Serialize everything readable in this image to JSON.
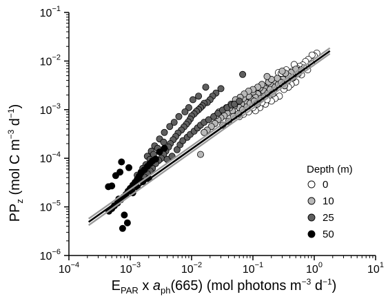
{
  "chart_data": {
    "type": "scatter",
    "title": "",
    "xlabel": {
      "prefix": "E",
      "prefix_sub": "PAR",
      "middle": " x ",
      "italic": "a",
      "italic_sub": "ph",
      "rest": "(665) (mol photons m",
      "sup1": "−3",
      "rest2": " d",
      "sup2": "−1",
      "end": ")"
    },
    "ylabel": {
      "prefix": "PP",
      "prefix_sub": "z",
      "rest": " (mol C m",
      "sup1": "−3",
      "rest2": " d",
      "sup2": "−1",
      "end": ")"
    },
    "x_scale": "log",
    "y_scale": "log",
    "xlim": [
      0.0001,
      10
    ],
    "ylim": [
      1e-06,
      0.1
    ],
    "x_ticks": [
      {
        "base": "10",
        "exp": "−4",
        "value": 0.0001
      },
      {
        "base": "10",
        "exp": "−3",
        "value": 0.001
      },
      {
        "base": "10",
        "exp": "−2",
        "value": 0.01
      },
      {
        "base": "10",
        "exp": "−1",
        "value": 0.1
      },
      {
        "base": "10",
        "exp": "0",
        "value": 1
      },
      {
        "base": "10",
        "exp": "1",
        "value": 10
      }
    ],
    "y_ticks": [
      {
        "base": "10",
        "exp": "−6",
        "value": 1e-06
      },
      {
        "base": "10",
        "exp": "−5",
        "value": 1e-05
      },
      {
        "base": "10",
        "exp": "−4",
        "value": 0.0001
      },
      {
        "base": "10",
        "exp": "−3",
        "value": 0.001
      },
      {
        "base": "10",
        "exp": "−2",
        "value": 0.01
      },
      {
        "base": "10",
        "exp": "−1",
        "value": 0.1
      }
    ],
    "grid": false,
    "legend": {
      "title": "Depth (m)",
      "placement": "bottom-right",
      "entries": [
        {
          "label": "0",
          "fill": "#ffffff"
        },
        {
          "label": "10",
          "fill": "#b8b8b8"
        },
        {
          "label": "25",
          "fill": "#5f5f5f"
        },
        {
          "label": "50",
          "fill": "#000000"
        }
      ]
    },
    "fit_lines": [
      {
        "color": "#9a9a9a",
        "x": [
          0.00021,
          1.8
        ],
        "y": [
          5.7e-06,
          0.0185
        ]
      },
      {
        "color": "#9a9a9a",
        "x": [
          0.00021,
          1.8
        ],
        "y": [
          4.2e-06,
          0.0142
        ]
      },
      {
        "color": "#000000",
        "x": [
          0.00021,
          1.8
        ],
        "y": [
          4.9e-06,
          0.0161
        ]
      }
    ],
    "series": [
      {
        "name": "0",
        "fill": "#ffffff",
        "points": [
          [
            1.1,
            0.0145
          ],
          [
            1.0,
            0.0128
          ],
          [
            0.92,
            0.0133
          ],
          [
            0.8,
            0.0108
          ],
          [
            0.72,
            0.0098
          ],
          [
            0.65,
            0.0083
          ],
          [
            0.58,
            0.0078
          ],
          [
            0.52,
            0.0071
          ],
          [
            0.47,
            0.0085
          ],
          [
            0.44,
            0.0062
          ],
          [
            0.4,
            0.0056
          ],
          [
            0.36,
            0.005
          ],
          [
            0.33,
            0.0052
          ],
          [
            0.3,
            0.0047
          ],
          [
            0.28,
            0.0042
          ],
          [
            0.26,
            0.0058
          ],
          [
            0.24,
            0.0036
          ],
          [
            0.22,
            0.0032
          ],
          [
            0.2,
            0.0038
          ],
          [
            0.18,
            0.0028
          ],
          [
            0.17,
            0.0024
          ],
          [
            0.15,
            0.003
          ],
          [
            0.14,
            0.0022
          ],
          [
            0.13,
            0.0019
          ],
          [
            0.12,
            0.0016
          ],
          [
            0.11,
            0.0021
          ],
          [
            0.1,
            0.0014
          ],
          [
            0.095,
            0.0017
          ],
          [
            0.088,
            0.0012
          ],
          [
            0.5,
            0.0037
          ],
          [
            0.62,
            0.0052
          ],
          [
            0.42,
            0.0033
          ],
          [
            0.38,
            0.0029
          ],
          [
            0.32,
            0.0026
          ],
          [
            0.27,
            0.0019
          ],
          [
            0.23,
            0.0017
          ],
          [
            0.2,
            0.0015
          ],
          [
            0.16,
            0.0013
          ],
          [
            0.13,
            0.0011
          ],
          [
            0.11,
            0.00095
          ],
          [
            0.085,
            0.0009
          ],
          [
            0.78,
            0.0066
          ],
          [
            0.9,
            0.0089
          ],
          [
            0.35,
            0.0066
          ],
          [
            0.29,
            0.0056
          ],
          [
            0.25,
            0.0029
          ],
          [
            0.19,
            0.0022
          ],
          [
            0.15,
            0.0018
          ],
          [
            0.12,
            0.0025
          ],
          [
            0.1,
            0.0011
          ],
          [
            0.07,
            0.0008
          ],
          [
            0.06,
            0.00072
          ],
          [
            0.055,
            0.001
          ],
          [
            0.45,
            0.0045
          ],
          [
            0.55,
            0.0064
          ],
          [
            0.68,
            0.0072
          ],
          [
            0.3,
            0.0034
          ],
          [
            0.21,
            0.0024
          ],
          [
            0.17,
            0.0016
          ],
          [
            0.14,
            0.0014
          ],
          [
            0.09,
            0.0019
          ],
          [
            0.075,
            0.0015
          ],
          [
            0.065,
            0.0011
          ]
        ]
      },
      {
        "name": "10",
        "fill": "#b8b8b8",
        "points": [
          [
            0.5,
            0.0068
          ],
          [
            0.42,
            0.0058
          ],
          [
            0.38,
            0.0049
          ],
          [
            0.34,
            0.0056
          ],
          [
            0.31,
            0.0042
          ],
          [
            0.27,
            0.0038
          ],
          [
            0.25,
            0.0044
          ],
          [
            0.22,
            0.0035
          ],
          [
            0.2,
            0.0031
          ],
          [
            0.18,
            0.0037
          ],
          [
            0.16,
            0.0027
          ],
          [
            0.15,
            0.0024
          ],
          [
            0.13,
            0.0028
          ],
          [
            0.12,
            0.0021
          ],
          [
            0.11,
            0.0018
          ],
          [
            0.1,
            0.0023
          ],
          [
            0.095,
            0.0016
          ],
          [
            0.085,
            0.0019
          ],
          [
            0.078,
            0.0014
          ],
          [
            0.07,
            0.0017
          ],
          [
            0.065,
            0.0013
          ],
          [
            0.06,
            0.0011
          ],
          [
            0.055,
            0.0015
          ],
          [
            0.05,
            0.0012
          ],
          [
            0.046,
            0.00095
          ],
          [
            0.042,
            0.0011
          ],
          [
            0.038,
            0.00085
          ],
          [
            0.034,
            0.00075
          ],
          [
            0.03,
            0.00068
          ],
          [
            0.027,
            0.00062
          ],
          [
            0.024,
            0.00052
          ],
          [
            0.021,
            0.00045
          ],
          [
            0.018,
            0.00038
          ],
          [
            0.016,
            0.00034
          ],
          [
            0.014,
            0.00012
          ],
          [
            0.032,
            0.00048
          ],
          [
            0.04,
            0.00058
          ],
          [
            0.048,
            0.00072
          ],
          [
            0.058,
            0.00082
          ],
          [
            0.068,
            0.001
          ],
          [
            0.08,
            0.00115
          ],
          [
            0.09,
            0.00135
          ],
          [
            0.105,
            0.0015
          ],
          [
            0.118,
            0.0013
          ],
          [
            0.135,
            0.0017
          ],
          [
            0.155,
            0.0019
          ],
          [
            0.175,
            0.0022
          ],
          [
            0.19,
            0.0026
          ],
          [
            0.21,
            0.0021
          ],
          [
            0.23,
            0.0029
          ],
          [
            0.26,
            0.0033
          ],
          [
            0.29,
            0.0036
          ],
          [
            0.33,
            0.0031
          ],
          [
            0.37,
            0.0039
          ],
          [
            0.44,
            0.0045
          ],
          [
            0.55,
            0.0055
          ],
          [
            0.62,
            0.0066
          ],
          [
            0.14,
            0.0033
          ],
          [
            0.12,
            0.0029
          ],
          [
            0.1,
            0.0026
          ],
          [
            0.085,
            0.0024
          ],
          [
            0.072,
            0.0021
          ],
          [
            0.062,
            0.0018
          ],
          [
            0.052,
            0.0016
          ],
          [
            0.044,
            0.0013
          ],
          [
            0.037,
            0.0011
          ],
          [
            0.028,
            0.0009
          ],
          [
            0.025,
            0.00075
          ],
          [
            0.2,
            0.0042
          ],
          [
            0.17,
            0.0048
          ],
          [
            0.3,
            0.0062
          ]
        ]
      },
      {
        "name": "25",
        "fill": "#5f5f5f",
        "points": [
          [
            0.068,
            0.0053
          ],
          [
            0.03,
            0.0027
          ],
          [
            0.025,
            0.0022
          ],
          [
            0.022,
            0.0019
          ],
          [
            0.02,
            0.0016
          ],
          [
            0.018,
            0.0014
          ],
          [
            0.016,
            0.00135
          ],
          [
            0.015,
            0.0012
          ],
          [
            0.014,
            0.0011
          ],
          [
            0.013,
            0.001
          ],
          [
            0.012,
            0.00092
          ],
          [
            0.011,
            0.00082
          ],
          [
            0.01,
            0.00074
          ],
          [
            0.0095,
            0.00064
          ],
          [
            0.0088,
            0.00056
          ],
          [
            0.0082,
            0.0005
          ],
          [
            0.0075,
            0.00044
          ],
          [
            0.0068,
            0.00038
          ],
          [
            0.006,
            0.00033
          ],
          [
            0.0055,
            0.00028
          ],
          [
            0.005,
            0.00024
          ],
          [
            0.0045,
            0.0002
          ],
          [
            0.0042,
            0.00017
          ],
          [
            0.0038,
            0.00014
          ],
          [
            0.0035,
            0.00012
          ],
          [
            0.0032,
            0.0001
          ],
          [
            0.0029,
            9e-05
          ],
          [
            0.0026,
            7.8e-05
          ],
          [
            0.0023,
            6.2e-05
          ],
          [
            0.0021,
            5.5e-05
          ],
          [
            0.0019,
            4.8e-05
          ],
          [
            0.0017,
            4.1e-05
          ],
          [
            0.004,
            9.5e-05
          ],
          [
            0.0048,
            0.00011
          ],
          [
            0.0058,
            0.00015
          ],
          [
            0.0065,
            0.00019
          ],
          [
            0.0072,
            0.00023
          ],
          [
            0.0085,
            0.00027
          ],
          [
            0.0095,
            0.00031
          ],
          [
            0.011,
            0.00036
          ],
          [
            0.0125,
            0.00042
          ],
          [
            0.014,
            0.00048
          ],
          [
            0.016,
            0.00055
          ],
          [
            0.019,
            0.00062
          ],
          [
            0.023,
            0.00072
          ],
          [
            0.027,
            0.00085
          ],
          [
            0.032,
            0.00098
          ],
          [
            0.038,
            0.0011
          ],
          [
            0.045,
            0.00125
          ],
          [
            0.05,
            0.0013
          ],
          [
            0.06,
            0.0015
          ],
          [
            0.017,
            0.0029
          ],
          [
            0.013,
            0.0019
          ],
          [
            0.0105,
            0.0016
          ],
          [
            0.009,
            0.0011
          ],
          [
            0.0078,
            0.0009
          ],
          [
            0.0062,
            0.00072
          ],
          [
            0.0052,
            0.00055
          ],
          [
            0.0044,
            0.00045
          ],
          [
            0.0036,
            0.00034
          ],
          [
            0.003,
            0.00025
          ],
          [
            0.0025,
            0.00018
          ],
          [
            0.0022,
            0.00014
          ],
          [
            0.0019,
            0.00011
          ],
          [
            0.0035,
            0.000215
          ],
          [
            0.0028,
            0.00016
          ],
          [
            0.0024,
            0.00012
          ],
          [
            0.0021,
            9.5e-05
          ],
          [
            0.0018,
            7.4e-05
          ],
          [
            0.0016,
            6.2e-05
          ],
          [
            0.0015,
            5.2e-05
          ],
          [
            0.0013,
            4.5e-05
          ]
        ]
      },
      {
        "name": "50",
        "fill": "#000000",
        "points": [
          [
            0.0036,
            0.00016
          ],
          [
            0.003,
            0.000135
          ],
          [
            0.0026,
            9.6e-05
          ],
          [
            0.0023,
            8.8e-05
          ],
          [
            0.0021,
            7.8e-05
          ],
          [
            0.0019,
            6.8e-05
          ],
          [
            0.0017,
            5.8e-05
          ],
          [
            0.0015,
            5e-05
          ],
          [
            0.0014,
            4.3e-05
          ],
          [
            0.0013,
            3.7e-05
          ],
          [
            0.0012,
            3.2e-05
          ],
          [
            0.0011,
            2.8e-05
          ],
          [
            0.001,
            2.4e-05
          ],
          [
            0.00092,
            2.1e-05
          ],
          [
            0.00085,
            1.8e-05
          ],
          [
            0.00078,
            1.6e-05
          ],
          [
            0.0007,
            1.4e-05
          ],
          [
            0.00062,
            1.2e-05
          ],
          [
            0.00055,
            1.05e-05
          ],
          [
            0.0005,
            9.2e-06
          ],
          [
            0.00045,
            8.2e-06
          ],
          [
            0.00072,
            8.4e-05
          ],
          [
            0.00095,
            6.4e-05
          ],
          [
            0.00068,
            5.2e-05
          ],
          [
            0.00058,
            4.4e-05
          ],
          [
            0.0005,
            2.7e-05
          ],
          [
            0.00044,
            2.6e-05
          ],
          [
            0.0008,
            6.8e-06
          ],
          [
            0.0009,
            4.7e-06
          ],
          [
            0.00075,
            3.6e-06
          ],
          [
            0.00065,
            1.45e-05
          ],
          [
            0.0011,
            1.95e-05
          ],
          [
            0.0013,
            2.55e-05
          ],
          [
            0.0016,
            3.3e-05
          ],
          [
            0.002,
            3.8e-05
          ]
        ]
      }
    ]
  }
}
